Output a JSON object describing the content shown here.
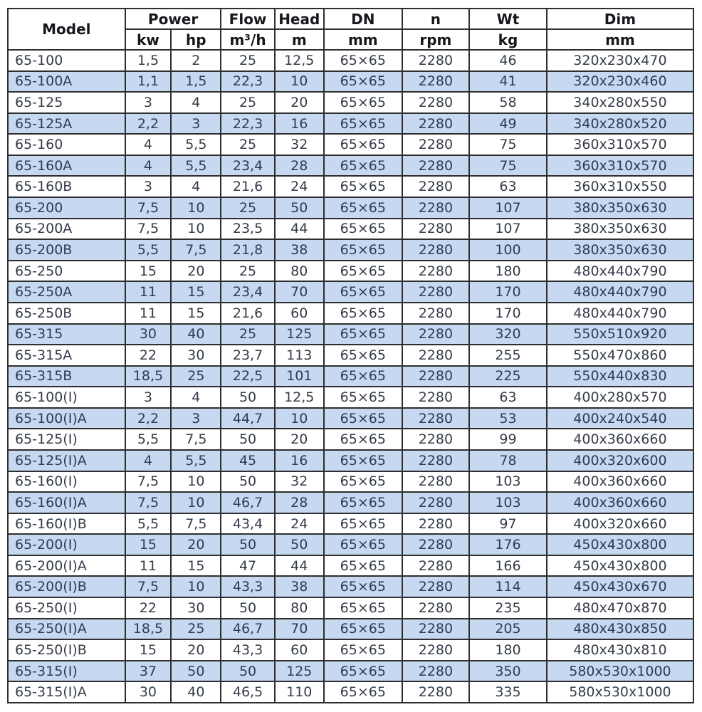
{
  "colors": {
    "row_stripe_blue": "#c6d9f0",
    "border": "#2e2e2e",
    "header_text": "#17171e",
    "body_text": "#353c48"
  },
  "table": {
    "header": {
      "model": "Model",
      "power": {
        "label": "Power",
        "units": [
          "kw",
          "hp"
        ]
      },
      "flow": {
        "label": "Flow",
        "unit": "m³/h"
      },
      "head": {
        "label": "Head",
        "unit": "m"
      },
      "dn": {
        "label": "DN",
        "unit": "mm"
      },
      "n": {
        "label": "n",
        "unit": "rpm"
      },
      "wt": {
        "label": "Wt",
        "unit": "kg"
      },
      "dim": {
        "label": "Dim",
        "unit": "mm"
      }
    },
    "rows": [
      [
        "65-100",
        "1,5",
        "2",
        "25",
        "12,5",
        "65×65",
        "2280",
        "46",
        "320x230x470"
      ],
      [
        "65-100A",
        "1,1",
        "1,5",
        "22,3",
        "10",
        "65×65",
        "2280",
        "41",
        "320x230x460"
      ],
      [
        "65-125",
        "3",
        "4",
        "25",
        "20",
        "65×65",
        "2280",
        "58",
        "340x280x550"
      ],
      [
        "65-125A",
        "2,2",
        "3",
        "22,3",
        "16",
        "65×65",
        "2280",
        "49",
        "340x280x520"
      ],
      [
        "65-160",
        "4",
        "5,5",
        "25",
        "32",
        "65×65",
        "2280",
        "75",
        "360x310x570"
      ],
      [
        "65-160A",
        "4",
        "5,5",
        "23,4",
        "28",
        "65×65",
        "2280",
        "75",
        "360x310x570"
      ],
      [
        "65-160B",
        "3",
        "4",
        "21,6",
        "24",
        "65×65",
        "2280",
        "63",
        "360x310x550"
      ],
      [
        "65-200",
        "7,5",
        "10",
        "25",
        "50",
        "65×65",
        "2280",
        "107",
        "380x350x630"
      ],
      [
        "65-200A",
        "7,5",
        "10",
        "23,5",
        "44",
        "65×65",
        "2280",
        "107",
        "380x350x630"
      ],
      [
        "65-200B",
        "5,5",
        "7,5",
        "21,8",
        "38",
        "65×65",
        "2280",
        "100",
        "380x350x630"
      ],
      [
        "65-250",
        "15",
        "20",
        "25",
        "80",
        "65×65",
        "2280",
        "180",
        "480x440x790"
      ],
      [
        "65-250A",
        "11",
        "15",
        "23,4",
        "70",
        "65×65",
        "2280",
        "170",
        "480x440x790"
      ],
      [
        "65-250B",
        "11",
        "15",
        "21,6",
        "60",
        "65×65",
        "2280",
        "170",
        "480x440x790"
      ],
      [
        "65-315",
        "30",
        "40",
        "25",
        "125",
        "65×65",
        "2280",
        "320",
        "550x510x920"
      ],
      [
        "65-315A",
        "22",
        "30",
        "23,7",
        "113",
        "65×65",
        "2280",
        "255",
        "550x470x860"
      ],
      [
        "65-315B",
        "18,5",
        "25",
        "22,5",
        "101",
        "65×65",
        "2280",
        "225",
        "550x440x830"
      ],
      [
        "65-100(I)",
        "3",
        "4",
        "50",
        "12,5",
        "65×65",
        "2280",
        "63",
        "400x280x570"
      ],
      [
        "65-100(I)A",
        "2,2",
        "3",
        "44,7",
        "10",
        "65×65",
        "2280",
        "53",
        "400x240x540"
      ],
      [
        "65-125(I)",
        "5,5",
        "7,5",
        "50",
        "20",
        "65×65",
        "2280",
        "99",
        "400x360x660"
      ],
      [
        "65-125(I)A",
        "4",
        "5,5",
        "45",
        "16",
        "65×65",
        "2280",
        "78",
        "400x320x600"
      ],
      [
        "65-160(I)",
        "7,5",
        "10",
        "50",
        "32",
        "65×65",
        "2280",
        "103",
        "400x360x660"
      ],
      [
        "65-160(I)A",
        "7,5",
        "10",
        "46,7",
        "28",
        "65×65",
        "2280",
        "103",
        "400x360x660"
      ],
      [
        "65-160(I)B",
        "5,5",
        "7,5",
        "43,4",
        "24",
        "65×65",
        "2280",
        "97",
        "400x320x660"
      ],
      [
        "65-200(I)",
        "15",
        "20",
        "50",
        "50",
        "65×65",
        "2280",
        "176",
        "450x430x800"
      ],
      [
        "65-200(I)A",
        "11",
        "15",
        "47",
        "44",
        "65×65",
        "2280",
        "166",
        "450x430x800"
      ],
      [
        "65-200(I)B",
        "7,5",
        "10",
        "43,3",
        "38",
        "65×65",
        "2280",
        "114",
        "450x430x670"
      ],
      [
        "65-250(I)",
        "22",
        "30",
        "50",
        "80",
        "65×65",
        "2280",
        "235",
        "480x470x870"
      ],
      [
        "65-250(I)A",
        "18,5",
        "25",
        "46,7",
        "70",
        "65×65",
        "2280",
        "205",
        "480x430x850"
      ],
      [
        "65-250(I)B",
        "15",
        "20",
        "43,3",
        "60",
        "65×65",
        "2280",
        "180",
        "480x430x810"
      ],
      [
        "65-315(I)",
        "37",
        "50",
        "50",
        "125",
        "65×65",
        "2280",
        "350",
        "580x530x1000"
      ],
      [
        "65-315(I)A",
        "30",
        "40",
        "46,5",
        "110",
        "65×65",
        "2280",
        "335",
        "580x530x1000"
      ]
    ]
  },
  "chart_data": {
    "type": "table",
    "title": "Pump model specification table (65 series)",
    "columns": [
      "Model",
      "Power kw",
      "Power hp",
      "Flow m³/h",
      "Head m",
      "DN mm",
      "n rpm",
      "Wt kg",
      "Dim mm"
    ],
    "rows": [
      [
        "65-100",
        "1,5",
        "2",
        "25",
        "12,5",
        "65×65",
        "2280",
        "46",
        "320x230x470"
      ],
      [
        "65-100A",
        "1,1",
        "1,5",
        "22,3",
        "10",
        "65×65",
        "2280",
        "41",
        "320x230x460"
      ],
      [
        "65-125",
        "3",
        "4",
        "25",
        "20",
        "65×65",
        "2280",
        "58",
        "340x280x550"
      ],
      [
        "65-125A",
        "2,2",
        "3",
        "22,3",
        "16",
        "65×65",
        "2280",
        "49",
        "340x280x520"
      ],
      [
        "65-160",
        "4",
        "5,5",
        "25",
        "32",
        "65×65",
        "2280",
        "75",
        "360x310x570"
      ],
      [
        "65-160A",
        "4",
        "5,5",
        "23,4",
        "28",
        "65×65",
        "2280",
        "75",
        "360x310x570"
      ],
      [
        "65-160B",
        "3",
        "4",
        "21,6",
        "24",
        "65×65",
        "2280",
        "63",
        "360x310x550"
      ],
      [
        "65-200",
        "7,5",
        "10",
        "25",
        "50",
        "65×65",
        "2280",
        "107",
        "380x350x630"
      ],
      [
        "65-200A",
        "7,5",
        "10",
        "23,5",
        "44",
        "65×65",
        "2280",
        "107",
        "380x350x630"
      ],
      [
        "65-200B",
        "5,5",
        "7,5",
        "21,8",
        "38",
        "65×65",
        "2280",
        "100",
        "380x350x630"
      ],
      [
        "65-250",
        "15",
        "20",
        "25",
        "80",
        "65×65",
        "2280",
        "180",
        "480x440x790"
      ],
      [
        "65-250A",
        "11",
        "15",
        "23,4",
        "70",
        "65×65",
        "2280",
        "170",
        "480x440x790"
      ],
      [
        "65-250B",
        "11",
        "15",
        "21,6",
        "60",
        "65×65",
        "2280",
        "170",
        "480x440x790"
      ],
      [
        "65-315",
        "30",
        "40",
        "25",
        "125",
        "65×65",
        "2280",
        "320",
        "550x510x920"
      ],
      [
        "65-315A",
        "22",
        "30",
        "23,7",
        "113",
        "65×65",
        "2280",
        "255",
        "550x470x860"
      ],
      [
        "65-315B",
        "18,5",
        "25",
        "22,5",
        "101",
        "65×65",
        "2280",
        "225",
        "550x440x830"
      ],
      [
        "65-100(I)",
        "3",
        "4",
        "50",
        "12,5",
        "65×65",
        "2280",
        "63",
        "400x280x570"
      ],
      [
        "65-100(I)A",
        "2,2",
        "3",
        "44,7",
        "10",
        "65×65",
        "2280",
        "53",
        "400x240x540"
      ],
      [
        "65-125(I)",
        "5,5",
        "7,5",
        "50",
        "20",
        "65×65",
        "2280",
        "99",
        "400x360x660"
      ],
      [
        "65-125(I)A",
        "4",
        "5,5",
        "45",
        "16",
        "65×65",
        "2280",
        "78",
        "400x320x600"
      ],
      [
        "65-160(I)",
        "7,5",
        "10",
        "50",
        "32",
        "65×65",
        "2280",
        "103",
        "400x360x660"
      ],
      [
        "65-160(I)A",
        "7,5",
        "10",
        "46,7",
        "28",
        "65×65",
        "2280",
        "103",
        "400x360x660"
      ],
      [
        "65-160(I)B",
        "5,5",
        "7,5",
        "43,4",
        "24",
        "65×65",
        "2280",
        "97",
        "400x320x660"
      ],
      [
        "65-200(I)",
        "15",
        "20",
        "50",
        "50",
        "65×65",
        "2280",
        "176",
        "450x430x800"
      ],
      [
        "65-200(I)A",
        "11",
        "15",
        "47",
        "44",
        "65×65",
        "2280",
        "166",
        "450x430x800"
      ],
      [
        "65-200(I)B",
        "7,5",
        "10",
        "43,3",
        "38",
        "65×65",
        "2280",
        "114",
        "450x430x670"
      ],
      [
        "65-250(I)",
        "22",
        "30",
        "50",
        "80",
        "65×65",
        "2280",
        "235",
        "480x470x870"
      ],
      [
        "65-250(I)A",
        "18,5",
        "25",
        "46,7",
        "70",
        "65×65",
        "2280",
        "205",
        "480x430x850"
      ],
      [
        "65-250(I)B",
        "15",
        "20",
        "43,3",
        "60",
        "65×65",
        "2280",
        "180",
        "480x430x810"
      ],
      [
        "65-315(I)",
        "37",
        "50",
        "50",
        "125",
        "65×65",
        "2280",
        "350",
        "580x530x1000"
      ],
      [
        "65-315(I)A",
        "30",
        "40",
        "46,5",
        "110",
        "65×65",
        "2280",
        "335",
        "580x530x1000"
      ]
    ]
  }
}
